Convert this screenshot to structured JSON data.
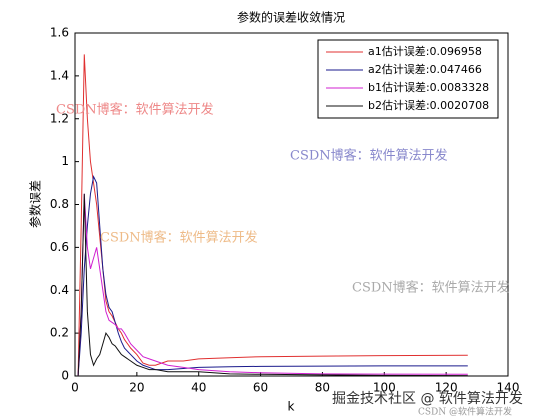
{
  "chart_data": {
    "type": "line",
    "title": "参数的误差收敛情况",
    "x_label": "k",
    "y_label": "参数误差",
    "x": [
      1,
      2,
      3,
      4,
      5,
      6,
      7,
      8,
      9,
      10,
      11,
      12,
      13,
      14,
      15,
      16,
      18,
      20,
      22,
      24,
      26,
      28,
      30,
      35,
      40,
      50,
      60,
      80,
      100,
      127
    ],
    "series": [
      {
        "name": "a1估计误差:0.096958",
        "color": "#e03030",
        "values": [
          0,
          0.7,
          1.5,
          1.2,
          1.0,
          0.9,
          0.8,
          0.65,
          0.5,
          0.35,
          0.3,
          0.28,
          0.25,
          0.22,
          0.2,
          0.17,
          0.13,
          0.1,
          0.06,
          0.05,
          0.05,
          0.06,
          0.07,
          0.07,
          0.08,
          0.085,
          0.09,
          0.093,
          0.095,
          0.097
        ]
      },
      {
        "name": "a2估计误差:0.047466",
        "color": "#1a1a8c",
        "values": [
          0,
          0.2,
          0.5,
          0.7,
          0.85,
          0.93,
          0.9,
          0.7,
          0.5,
          0.38,
          0.32,
          0.3,
          0.25,
          0.2,
          0.16,
          0.13,
          0.1,
          0.07,
          0.05,
          0.04,
          0.03,
          0.03,
          0.03,
          0.035,
          0.04,
          0.043,
          0.045,
          0.046,
          0.047,
          0.047
        ]
      },
      {
        "name": "b1估计误差:0.0083328",
        "color": "#d020d0",
        "values": [
          0,
          0.3,
          0.85,
          0.6,
          0.5,
          0.55,
          0.6,
          0.5,
          0.4,
          0.3,
          0.26,
          0.25,
          0.24,
          0.22,
          0.22,
          0.2,
          0.15,
          0.12,
          0.09,
          0.08,
          0.07,
          0.06,
          0.05,
          0.04,
          0.03,
          0.02,
          0.015,
          0.01,
          0.009,
          0.008
        ]
      },
      {
        "name": "b2估计误差:0.0020708",
        "color": "#111111",
        "values": [
          0,
          0.3,
          0.85,
          0.3,
          0.1,
          0.05,
          0.08,
          0.1,
          0.15,
          0.2,
          0.18,
          0.15,
          0.14,
          0.12,
          0.1,
          0.09,
          0.07,
          0.05,
          0.04,
          0.03,
          0.03,
          0.025,
          0.02,
          0.02,
          0.02,
          0.01,
          0.008,
          0.005,
          0.003,
          0.002
        ]
      }
    ],
    "xlim": [
      0,
      140
    ],
    "xticks": [
      0,
      20,
      40,
      60,
      80,
      100,
      120,
      140
    ],
    "ylim": [
      0,
      1.6
    ],
    "yticks": [
      0,
      0.2,
      0.4,
      0.6,
      0.8,
      1,
      1.2,
      1.4,
      1.6
    ],
    "legend": "top-right",
    "watermarks": [
      "CSDN博客：软件算法开发",
      "CSDN博客：软件算法开发",
      "CSDN博客：软件算法开发",
      "CSDN博客：软件算法开发",
      "掘金技术社区 @ 软件算法开发",
      "CSDN @软件算法开发"
    ]
  }
}
